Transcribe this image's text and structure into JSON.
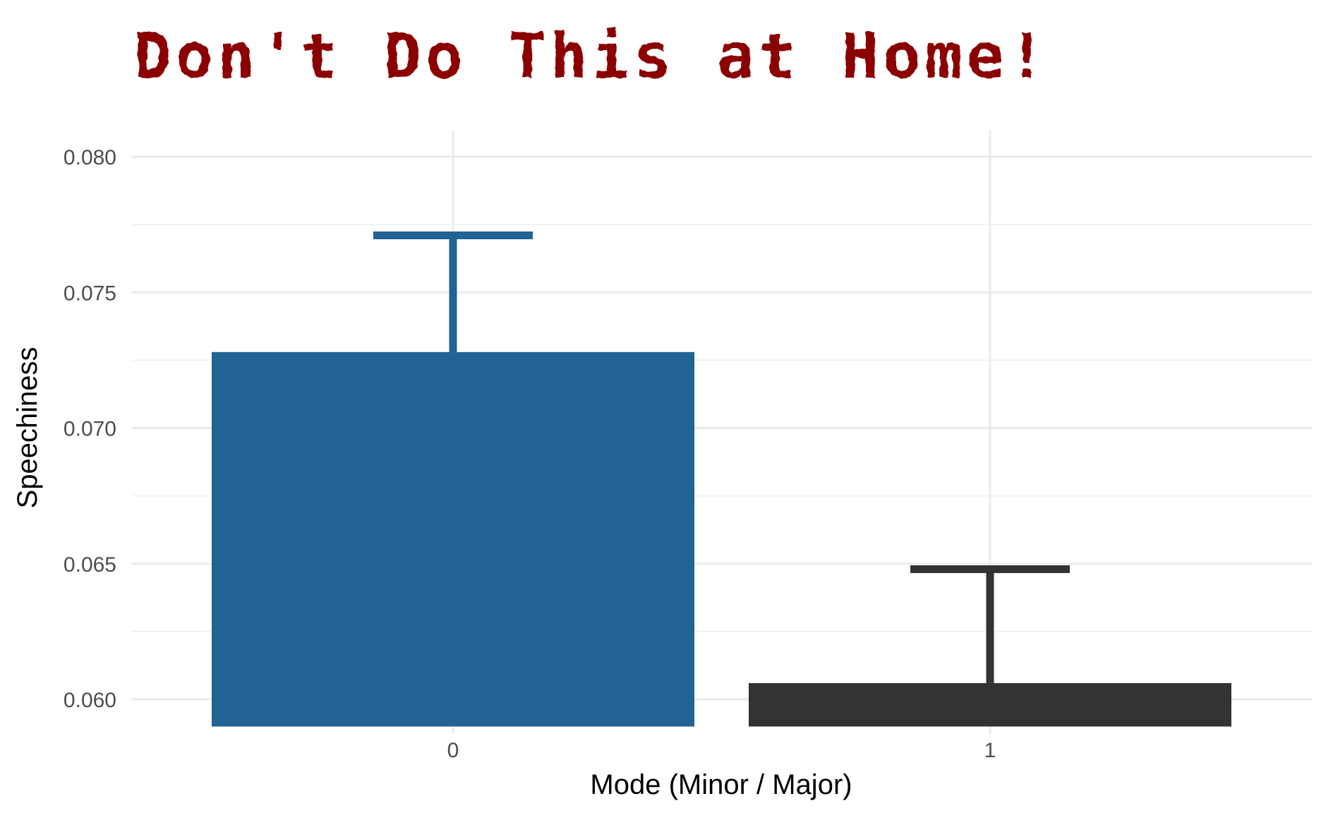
{
  "colors": {
    "title": "#8b0000",
    "grid_major": "#ebebeb",
    "grid_minor": "#f2f2f2",
    "tick_text": "#4d4d4d",
    "axis_title": "#000000",
    "series": [
      "#216394",
      "#333333"
    ]
  },
  "chart_data": {
    "type": "bar",
    "title": "Don't Do This at Home!",
    "xlabel": "Mode (Minor / Major)",
    "ylabel": "Speechiness",
    "categories": [
      "0",
      "1"
    ],
    "values": [
      0.0728,
      0.0606
    ],
    "error_upper": [
      0.0771,
      0.0648
    ],
    "ylim": [
      0.059,
      0.081
    ],
    "yticks": [
      0.06,
      0.065,
      0.07,
      0.075,
      0.08
    ],
    "ytick_labels": [
      "0.060",
      "0.065",
      "0.070",
      "0.075",
      "0.080"
    ],
    "grid": true,
    "legend": "none"
  }
}
